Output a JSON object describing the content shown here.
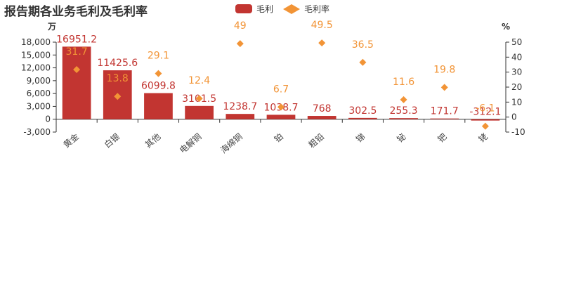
{
  "title": "报告期各业务毛利及毛利率",
  "legend": {
    "bar_label": "毛利",
    "line_label": "毛利率"
  },
  "colors": {
    "bar": "#c23531",
    "bar_label": "#c23531",
    "rate": "#f29436",
    "axis": "#333333"
  },
  "chart_data": {
    "type": "bar",
    "categories": [
      "黄金",
      "白银",
      "其他",
      "电解铜",
      "海绵铜",
      "铂",
      "粗铅",
      "锑",
      "铋",
      "钯",
      "铑"
    ],
    "series": [
      {
        "name": "毛利",
        "type": "bar",
        "axis": "left",
        "values": [
          16951.2,
          11425.6,
          6099.8,
          3101.5,
          1238.7,
          1038.7,
          768,
          302.5,
          255.3,
          171.7,
          -312.1
        ]
      },
      {
        "name": "毛利率",
        "type": "scatter",
        "axis": "right",
        "values": [
          31.7,
          13.8,
          29.1,
          12.4,
          49,
          6.7,
          49.5,
          36.5,
          11.6,
          19.8,
          -6.1
        ]
      }
    ],
    "left_axis": {
      "unit": "万",
      "min": -3000,
      "max": 18000,
      "ticks": [
        -3000,
        0,
        3000,
        6000,
        9000,
        12000,
        15000,
        18000
      ],
      "tick_labels": [
        "-3,000",
        "0",
        "3,000",
        "6,000",
        "9,000",
        "12,000",
        "15,000",
        "18,000"
      ]
    },
    "right_axis": {
      "unit": "%",
      "min": -10,
      "max": 50,
      "ticks": [
        -10,
        0,
        10,
        20,
        30,
        40,
        50
      ],
      "tick_labels": [
        "-10",
        "0",
        "10",
        "20",
        "30",
        "40",
        "50"
      ]
    },
    "legend_position": "top"
  }
}
